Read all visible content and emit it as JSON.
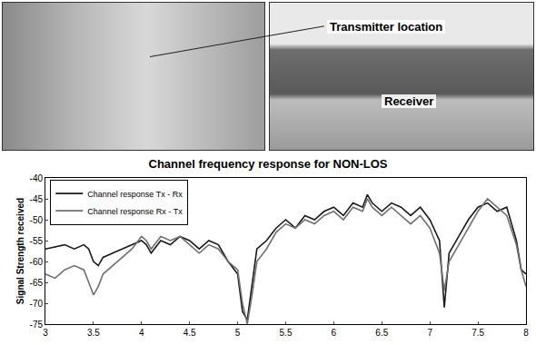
{
  "chart_data": {
    "type": "line",
    "title": "Channel frequency response for NON-LOS",
    "y_label": "Signal Strength received",
    "annotations": [
      "Transmitter location",
      "Receiver"
    ],
    "x": [
      3.0,
      3.1,
      3.2,
      3.3,
      3.4,
      3.45,
      3.5,
      3.55,
      3.6,
      3.7,
      3.8,
      3.9,
      4.0,
      4.05,
      4.1,
      4.2,
      4.3,
      4.4,
      4.5,
      4.6,
      4.7,
      4.8,
      4.9,
      5.0,
      5.05,
      5.1,
      5.15,
      5.2,
      5.3,
      5.4,
      5.5,
      5.6,
      5.7,
      5.8,
      5.9,
      6.0,
      6.1,
      6.2,
      6.3,
      6.35,
      6.4,
      6.5,
      6.6,
      6.7,
      6.8,
      6.9,
      7.0,
      7.1,
      7.15,
      7.2,
      7.3,
      7.4,
      7.5,
      7.6,
      7.7,
      7.8,
      7.9,
      7.95,
      8.0
    ],
    "series": [
      {
        "name": "Channel response Tx - Rx",
        "color": "#1a1a1a",
        "values": [
          -57,
          -56.5,
          -56,
          -57,
          -56,
          -57,
          -60,
          -61,
          -59,
          -58,
          -57,
          -56,
          -55,
          -56,
          -58,
          -55,
          -56,
          -54,
          -55,
          -57,
          -55,
          -56,
          -60,
          -63,
          -72,
          -74,
          -66,
          -57,
          -55,
          -52,
          -50,
          -52,
          -49,
          -50,
          -48,
          -47,
          -49,
          -46,
          -47,
          -44,
          -46,
          -48,
          -46,
          -47,
          -49,
          -47,
          -50,
          -55,
          -71,
          -58,
          -54,
          -50,
          -47,
          -46,
          -48,
          -47,
          -55,
          -62,
          -63
        ]
      },
      {
        "name": "Channel response Rx - Tx",
        "color": "#707070",
        "values": [
          -63,
          -64,
          -62,
          -61,
          -62,
          -65,
          -68,
          -66,
          -63,
          -61,
          -59,
          -57,
          -54,
          -55,
          -57,
          -54,
          -55,
          -54,
          -56,
          -58,
          -56,
          -57,
          -60,
          -62,
          -70,
          -75,
          -68,
          -60,
          -57,
          -53,
          -51,
          -52,
          -50,
          -51,
          -49,
          -48,
          -50,
          -47,
          -48,
          -45,
          -47,
          -49,
          -47,
          -49,
          -51,
          -49,
          -52,
          -58,
          -67,
          -60,
          -56,
          -52,
          -48,
          -45,
          -47,
          -49,
          -56,
          -62,
          -66
        ]
      }
    ],
    "xlim": [
      3,
      8
    ],
    "xticks": [
      3,
      3.5,
      4,
      4.5,
      5,
      5.5,
      6,
      6.5,
      7,
      7.5,
      8
    ],
    "ylim": [
      -75,
      -40
    ],
    "yticks": [
      -75,
      -70,
      -65,
      -60,
      -55,
      -50,
      -45,
      -40
    ],
    "grid": false,
    "legend": "upper left"
  }
}
